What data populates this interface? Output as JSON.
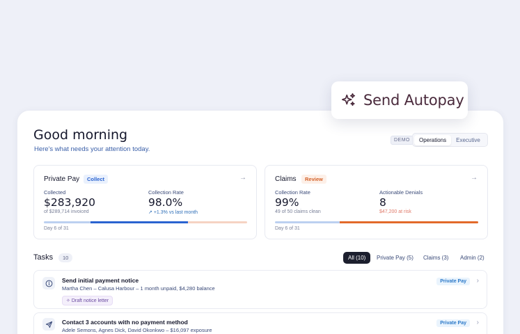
{
  "autopay": {
    "label": "Send Autopay",
    "icon": "sparkle-icon"
  },
  "header": {
    "greeting": "Good morning",
    "subtitle": "Here's what needs your attention today.",
    "demo_badge": "DEMO",
    "view_toggle": {
      "options": [
        "Operations",
        "Executive"
      ],
      "selected": "Operations"
    }
  },
  "cards": {
    "private_pay": {
      "title": "Private Pay",
      "tag": "Collect",
      "metrics": [
        {
          "label": "Collected",
          "value": "$283,920",
          "sub": "of $289,714 invoiced"
        },
        {
          "label": "Collection Rate",
          "value": "98.0%",
          "sub": "+1.3% vs last month"
        }
      ],
      "day": "Day 6 of 31",
      "colors": {
        "track_light": "#bcd0f0",
        "track_main": "#2a63d0",
        "track_tail": "#f6d3c3"
      }
    },
    "claims": {
      "title": "Claims",
      "tag": "Review",
      "metrics": [
        {
          "label": "Collection Rate",
          "value": "99%",
          "sub": "49 of 50 claims clean"
        },
        {
          "label": "Actionable Denials",
          "value": "8",
          "sub": "$47,200 at risk"
        }
      ],
      "day": "Day 6 of 31",
      "colors": {
        "track_light": "#bcd0f0",
        "track_main": "#e26a2a"
      }
    }
  },
  "tasks": {
    "title": "Tasks",
    "count": "10",
    "filters": [
      "All (10)",
      "Private Pay (5)",
      "Claims (3)",
      "Admin (2)"
    ],
    "items": [
      {
        "icon": "info-circle-icon",
        "title": "Send initial payment notice",
        "desc": "Martha Chen – Calusa Harbour – 1 month unpaid, $4,280 balance",
        "chip": "Draft notice letter",
        "pill": "Private Pay"
      },
      {
        "icon": "send-icon",
        "title": "Contact 3 accounts with no payment method",
        "desc": "Adele Semons, Agnes Dick, David Okonkwo – $16,097 exposure",
        "pill": "Private Pay"
      }
    ]
  }
}
